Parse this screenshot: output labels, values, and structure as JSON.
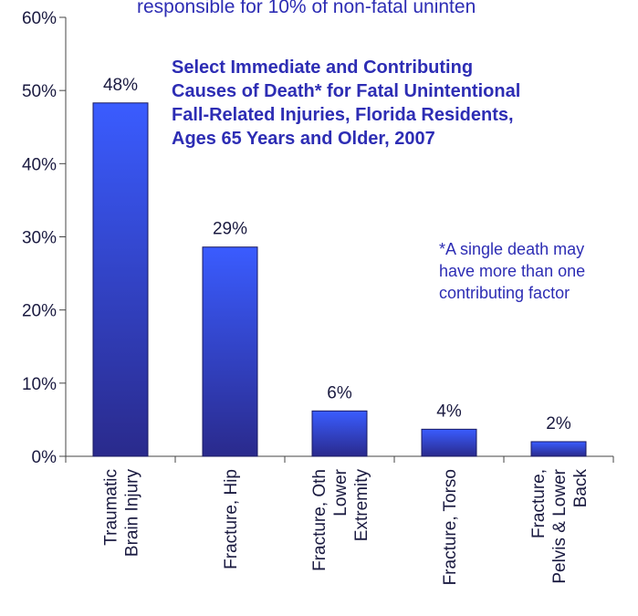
{
  "chart_data": {
    "type": "bar",
    "header_text": "responsible for 10% of non-fatal uninten",
    "title": [
      "Select Immediate and Contributing",
      "Causes of Death* for Fatal Unintentional",
      "Fall-Related Injuries, Florida Residents,",
      "Ages 65 Years and Older, 2007"
    ],
    "footnote": [
      "*A single death may",
      "have more than one",
      "contributing factor"
    ],
    "categories": [
      [
        "Traumatic",
        "Brain Injury"
      ],
      [
        "Fracture, Hip"
      ],
      [
        "Fracture, Oth",
        "Lower",
        "Extremity"
      ],
      [
        "Fracture, Torso"
      ],
      [
        "Fracture,",
        "Pelvis & Lower",
        "Back"
      ]
    ],
    "values": [
      48.3,
      28.6,
      6.2,
      3.7,
      2.0
    ],
    "value_labels": [
      "48%",
      "29%",
      "6%",
      "4%",
      "2%"
    ],
    "color": "#3355ff",
    "ylim": [
      0,
      60
    ],
    "yticks": [
      {
        "value": 0,
        "label": "0%"
      },
      {
        "value": 10,
        "label": "10%"
      },
      {
        "value": 20,
        "label": "20%"
      },
      {
        "value": 30,
        "label": "30%"
      },
      {
        "value": 40,
        "label": "40%"
      },
      {
        "value": 50,
        "label": "50%"
      },
      {
        "value": 60,
        "label": "60%"
      }
    ]
  }
}
